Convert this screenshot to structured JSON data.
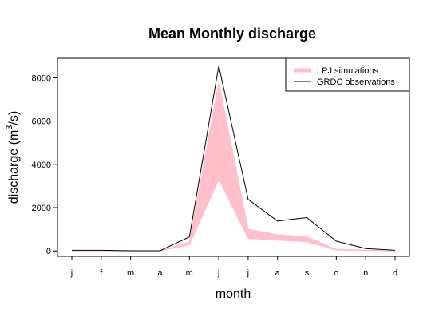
{
  "chart_data": {
    "type": "area",
    "title": "Mean Monthly discharge",
    "xlabel": "month",
    "ylabel_main": "discharge (m",
    "ylabel_sup": "3",
    "ylabel_tail": "/s)",
    "categories": [
      "j",
      "f",
      "m",
      "a",
      "m",
      "j",
      "j",
      "a",
      "s",
      "o",
      "n",
      "d"
    ],
    "ylim": [
      -250,
      8900
    ],
    "yticks": [
      0,
      2000,
      4000,
      6000,
      8000
    ],
    "grid": false,
    "legend_position": "top-right",
    "series": [
      {
        "name": "LPJ simulations",
        "kind": "band",
        "color": "#FFC0CB",
        "lower": [
          0,
          0,
          0,
          0,
          280,
          3300,
          580,
          500,
          420,
          40,
          20,
          0
        ],
        "upper": [
          0,
          0,
          0,
          0,
          420,
          7800,
          1000,
          750,
          650,
          80,
          40,
          0
        ]
      },
      {
        "name": "GRDC observations",
        "kind": "line",
        "color": "#000000",
        "values": [
          30,
          30,
          10,
          10,
          650,
          8550,
          2380,
          1380,
          1540,
          450,
          110,
          30
        ]
      }
    ]
  }
}
